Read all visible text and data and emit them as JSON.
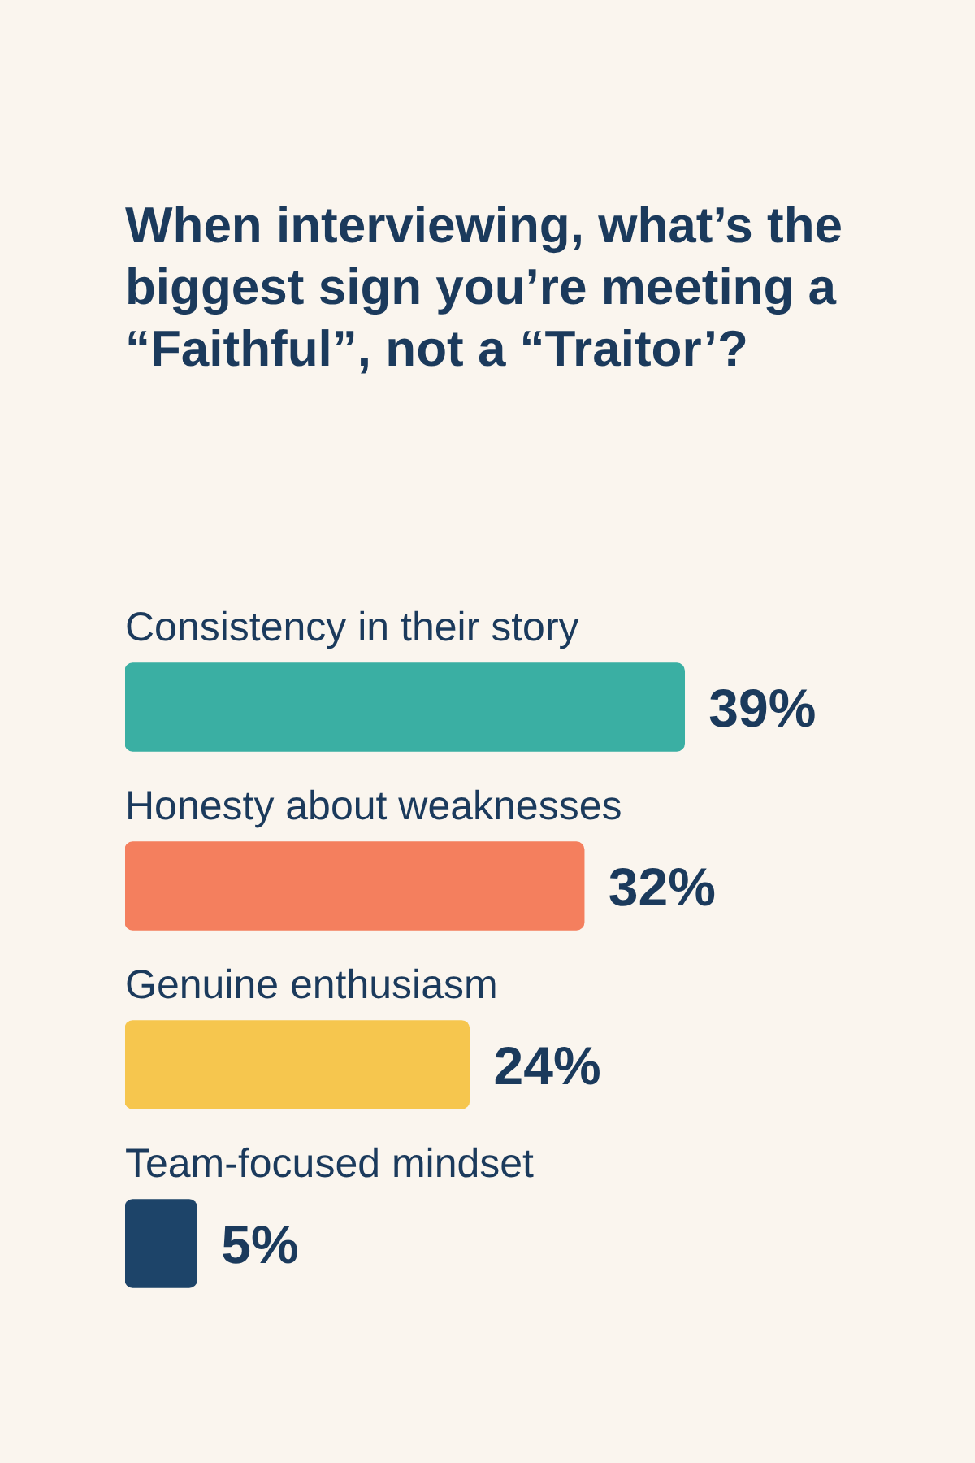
{
  "chart_data": {
    "type": "bar",
    "orientation": "horizontal",
    "title": "When interviewing, what’s the biggest sign you’re meeting a “Faithful”, not a “Traitor’?",
    "categories": [
      "Consistency in their story",
      "Honesty about weaknesses",
      "Genuine enthusiasm",
      "Team-focused mindset"
    ],
    "values": [
      39,
      32,
      24,
      5
    ],
    "colors": [
      "#3aafa3",
      "#f47f5e",
      "#f6c64e",
      "#1d4469"
    ],
    "value_labels": [
      "39%",
      "32%",
      "24%",
      "5%"
    ],
    "legend": false,
    "tick_labels": false
  }
}
